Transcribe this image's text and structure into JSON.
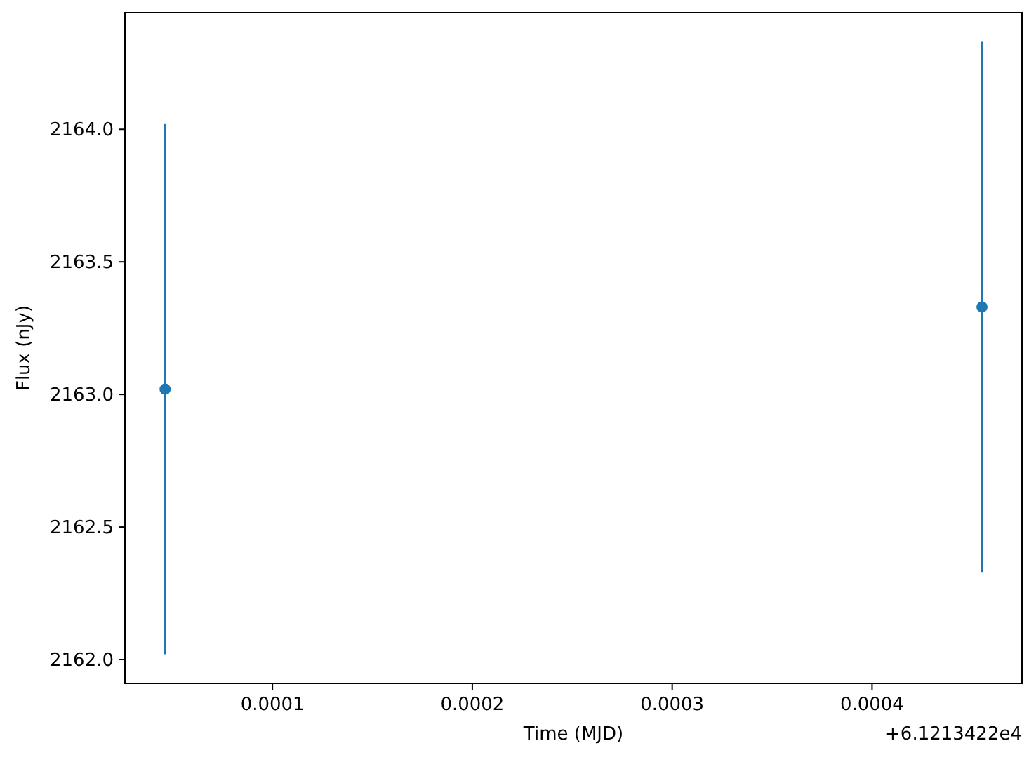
{
  "chart_data": {
    "type": "scatter",
    "xlabel": "Time (MJD)",
    "ylabel": "Flux (nJy)",
    "x": [
      4.63e-05,
      0.000455
    ],
    "series": [
      {
        "color": "#1f77b4",
        "values": [
          2163.02,
          2163.33
        ],
        "errors": [
          1.0,
          1.0
        ]
      }
    ],
    "marker": "circle",
    "xlim": [
      2.62e-05,
      0.000475
    ],
    "ylim": [
      2161.91,
      2164.44
    ],
    "xticks": [
      0.0001,
      0.0002,
      0.0003,
      0.0004
    ],
    "yticks": [
      {
        "value": 2162,
        "label": "2162.0"
      },
      {
        "value": 2162.5,
        "label": "2162.5"
      },
      {
        "value": 2163,
        "label": "2163.0"
      },
      {
        "value": 2163.5,
        "label": "2163.5"
      },
      {
        "value": 2164,
        "label": "2164.0"
      }
    ],
    "annotations": [
      "+6.1213422e4"
    ],
    "grid": false
  }
}
